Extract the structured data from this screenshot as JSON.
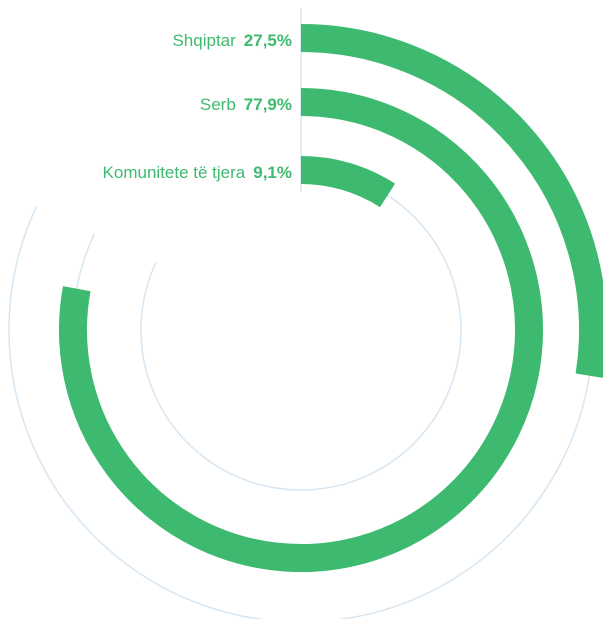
{
  "chart_data": {
    "type": "radial_bar",
    "categories": [
      "Shqiptar",
      "Serb",
      "Komunitete të tjera"
    ],
    "values": [
      27.5,
      77.9,
      9.1
    ],
    "value_labels": [
      "27,5%",
      "77,9%",
      "9,1%"
    ],
    "color": "#3dba6f"
  }
}
